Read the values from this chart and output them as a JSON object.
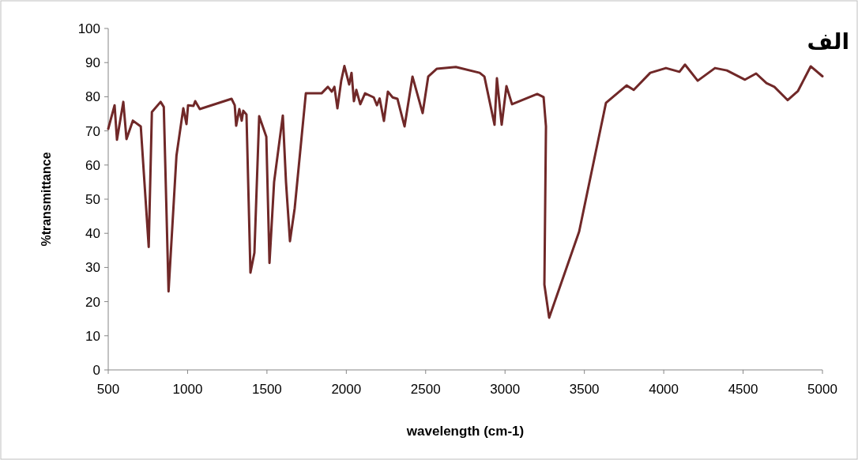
{
  "chart_data": {
    "type": "line",
    "title": "الف",
    "xlabel": "wavelength (cm-1)",
    "ylabel": "%transmittance",
    "x": [
      500,
      540,
      555,
      595,
      615,
      655,
      705,
      755,
      775,
      830,
      850,
      880,
      930,
      973,
      993,
      1003,
      1037,
      1048,
      1077,
      1277,
      1297,
      1306,
      1326,
      1341,
      1351,
      1371,
      1396,
      1421,
      1451,
      1496,
      1516,
      1545,
      1600,
      1620,
      1645,
      1675,
      1745,
      1844,
      1884,
      1909,
      1925,
      1944,
      1968,
      1988,
      2018,
      2033,
      2048,
      2063,
      2088,
      2118,
      2173,
      2193,
      2210,
      2237,
      2262,
      2292,
      2322,
      2367,
      2417,
      2481,
      2516,
      2571,
      2690,
      2840,
      2870,
      2934,
      2949,
      2979,
      3009,
      3044,
      3203,
      3243,
      3258,
      3248,
      3278,
      3467,
      3636,
      3766,
      3811,
      3915,
      4014,
      4099,
      4134,
      4214,
      4323,
      4398,
      4512,
      4582,
      4647,
      4697,
      4781,
      4846,
      4926,
      5000
    ],
    "series": [
      {
        "color": "#702828",
        "values": [
          70.6,
          77.5,
          67.4,
          78.5,
          67.6,
          73,
          71.3,
          36,
          75.5,
          78.5,
          77,
          23,
          62.8,
          76.6,
          72,
          77.5,
          77.3,
          78.7,
          76.4,
          79.4,
          77.5,
          71.5,
          76.4,
          73,
          75.9,
          74.8,
          28.5,
          34.3,
          74.3,
          68.3,
          31.3,
          55,
          74.5,
          55,
          37.7,
          47.4,
          81,
          81,
          82.9,
          81.5,
          82.9,
          76.6,
          84.7,
          89,
          83.6,
          87,
          78.7,
          82,
          77.8,
          81,
          79.8,
          77.5,
          79.5,
          72.9,
          81.5,
          79.8,
          79.4,
          71.3,
          85.9,
          75.2,
          85.9,
          88.2,
          88.7,
          87,
          85.9,
          71.8,
          85.4,
          71.8,
          83.1,
          77.8,
          80.8,
          79.9,
          71.3,
          25,
          15.3,
          40.5,
          78.2,
          83.3,
          82,
          87,
          88.4,
          87.3,
          89.4,
          84.7,
          88.4,
          87.7,
          85,
          86.8,
          84,
          82.9,
          79,
          81.7,
          88.9,
          86
        ]
      }
    ],
    "xlim": [
      500,
      5000
    ],
    "ylim": [
      0,
      100
    ],
    "xticks": [
      500,
      1000,
      1500,
      2000,
      2500,
      3000,
      3500,
      4000,
      4500,
      5000
    ],
    "yticks": [
      0,
      10,
      20,
      30,
      40,
      50,
      60,
      70,
      80,
      90,
      100
    ],
    "grid": false
  }
}
